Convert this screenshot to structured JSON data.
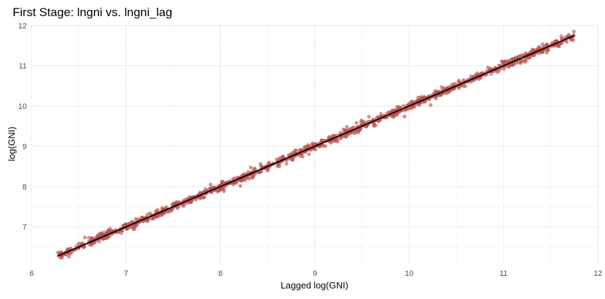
{
  "chart_data": {
    "type": "scatter",
    "title": "First Stage: lngni vs. lngni_lag",
    "xlabel": "Lagged log(GNI)",
    "ylabel": "log(GNI)",
    "xlim": [
      6,
      12
    ],
    "ylim": [
      6.08,
      12.04
    ],
    "x_ticks": [
      6,
      7,
      8,
      9,
      10,
      11,
      12
    ],
    "y_ticks": [
      7,
      8,
      9,
      10,
      11,
      12
    ],
    "grid": true,
    "legend": "none",
    "point_color": "#cd5c5c",
    "point_stroke": "#8b2e2e",
    "line_color": "#000000",
    "fit_line": {
      "x": [
        6.27,
        11.75
      ],
      "y": [
        6.27,
        11.75
      ]
    },
    "n_points": 1200,
    "scatter_x_range": [
      6.27,
      11.75
    ]
  }
}
